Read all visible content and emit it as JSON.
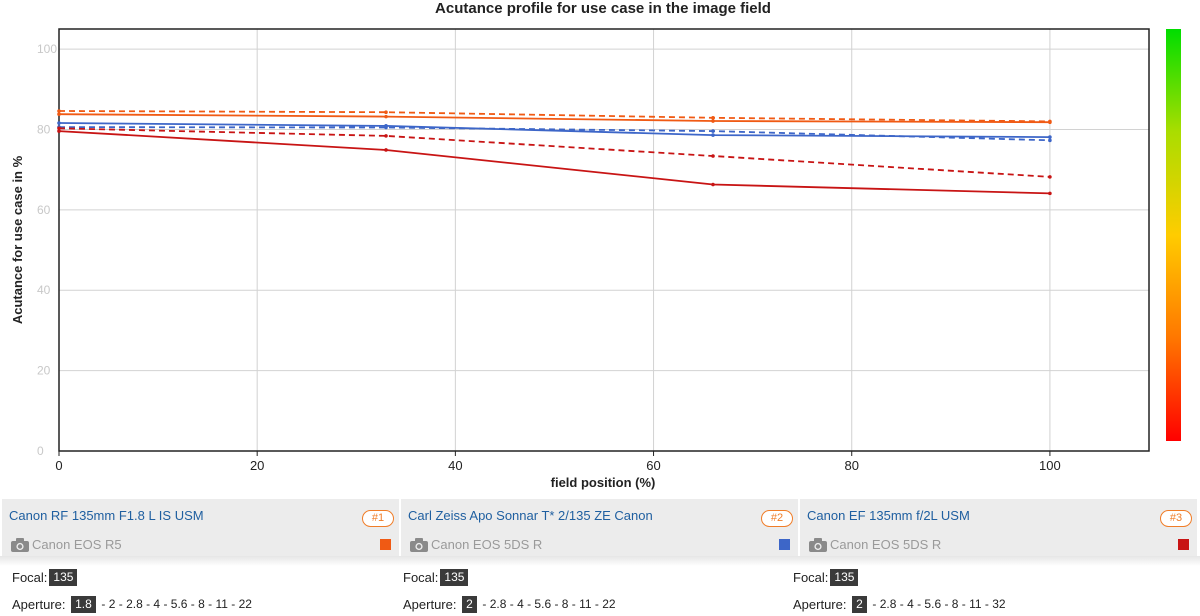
{
  "chart_data": {
    "type": "line",
    "title": "Acutance profile for use case in the image field",
    "xlabel": "field position (%)",
    "ylabel": "Acutance for use case in %",
    "xlim": [
      0,
      110
    ],
    "ylim": [
      0,
      105
    ],
    "x_ticks": [
      "0",
      "20",
      "40",
      "60",
      "80",
      "100"
    ],
    "y_ticks": [
      "0",
      "20",
      "40",
      "60",
      "80",
      "100"
    ],
    "grid": true,
    "color_scale": [
      "#00dd00",
      "#aadd00",
      "#ffcc00",
      "#ff7700",
      "#ff0000"
    ],
    "series": [
      {
        "name": "#1 solid",
        "color": "#f05a14",
        "dashed": false,
        "x": [
          0,
          33,
          66,
          100
        ],
        "y": [
          83.8,
          83.2,
          82.1,
          81.8
        ]
      },
      {
        "name": "#1 dashed",
        "color": "#f05a14",
        "dashed": true,
        "x": [
          0,
          33,
          66,
          100
        ],
        "y": [
          84.6,
          84.3,
          82.9,
          82.0
        ]
      },
      {
        "name": "#2 solid",
        "color": "#3d66c8",
        "dashed": false,
        "x": [
          0,
          33,
          66,
          100
        ],
        "y": [
          81.6,
          80.9,
          78.6,
          78.1
        ]
      },
      {
        "name": "#2 dashed",
        "color": "#3d66c8",
        "dashed": true,
        "x": [
          0,
          33,
          66,
          100
        ],
        "y": [
          80.6,
          80.5,
          79.6,
          77.3
        ]
      },
      {
        "name": "#3 solid",
        "color": "#c81414",
        "dashed": false,
        "x": [
          0,
          33,
          66,
          100
        ],
        "y": [
          79.6,
          74.9,
          66.3,
          64.1
        ]
      },
      {
        "name": "#3 dashed",
        "color": "#c81414",
        "dashed": true,
        "x": [
          0,
          33,
          66,
          100
        ],
        "y": [
          80.3,
          78.4,
          73.4,
          68.2
        ]
      }
    ]
  },
  "lenses": [
    {
      "name": "Canon RF 135mm F1.8 L IS USM",
      "badge": "#1",
      "camera": "Canon EOS R5",
      "color": "#f05a14",
      "focal_label": "Focal:",
      "focal": "135",
      "aperture_label": "Aperture:",
      "aperture": "1.8",
      "aperture_rest": "- 2 - 2.8 - 4 - 5.6 - 8 - 11 - 22"
    },
    {
      "name": "Carl Zeiss Apo Sonnar T* 2/135 ZE Canon",
      "badge": "#2",
      "camera": "Canon EOS 5DS R",
      "color": "#3d66c8",
      "focal_label": "Focal:",
      "focal": "135",
      "aperture_label": "Aperture:",
      "aperture": "2",
      "aperture_rest": "- 2.8 - 4 - 5.6 - 8 - 11 - 22"
    },
    {
      "name": "Canon EF 135mm f/2L USM",
      "badge": "#3",
      "camera": "Canon EOS 5DS R",
      "color": "#c81414",
      "focal_label": "Focal:",
      "focal": "135",
      "aperture_label": "Aperture:",
      "aperture": "2",
      "aperture_rest": "- 2.8 - 4 - 5.6 - 8 - 11 - 32"
    }
  ]
}
